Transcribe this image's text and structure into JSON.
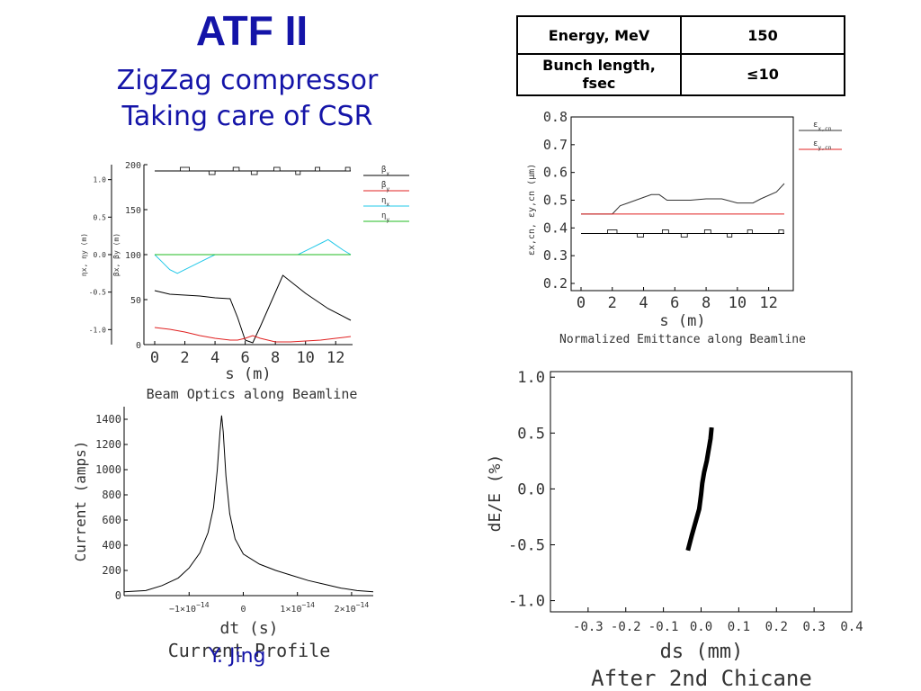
{
  "header": {
    "title": "ATF II",
    "subtitle_1": "ZigZag compressor",
    "subtitle_2": "Taking care of CSR"
  },
  "params_table": {
    "rows": [
      {
        "label": "Energy, MeV",
        "value": "150"
      },
      {
        "label_line1": "Bunch length,",
        "label_line2": "fsec",
        "value": "≤10"
      }
    ]
  },
  "author": "Y. Jing",
  "colors": {
    "title": "#1414a8",
    "beta_x": "#000000",
    "beta_y": "#e02020",
    "eta_x": "#22c8e8",
    "eta_y": "#22bb22"
  },
  "chart_data": [
    {
      "id": "beam-optics",
      "type": "line",
      "title": "Beam Optics along Beamline",
      "xlabel": "s (m)",
      "ylabel_left": "ηx, ηy (m)",
      "ylabel_right": "βx, βy (m)",
      "xlim": [
        0,
        13
      ],
      "ylim_beta": [
        0,
        200
      ],
      "ylim_eta": [
        -1.2,
        1.2
      ],
      "x_ticks": [
        0,
        2,
        4,
        6,
        8,
        10,
        12
      ],
      "beta_ticks": [
        0,
        50,
        100,
        150,
        200
      ],
      "eta_ticks": [
        -1.0,
        -0.5,
        0.0,
        0.5,
        1.0
      ],
      "eta_tick_labels": [
        "-1.0",
        "-0.5",
        "0.0",
        "0.5",
        "1.0"
      ],
      "legend_position": "right",
      "legend": [
        "βx",
        "βy",
        "ηx",
        "ηy"
      ],
      "series": [
        {
          "name": "βx",
          "axis": "beta",
          "x": [
            0,
            1,
            2,
            3,
            4,
            5,
            5.5,
            6,
            6.5,
            7,
            8.5,
            10,
            11.5,
            13
          ],
          "y": [
            60,
            56,
            55,
            54,
            52,
            51,
            30,
            5,
            2,
            20,
            77,
            57,
            40,
            27
          ]
        },
        {
          "name": "βy",
          "axis": "beta",
          "x": [
            0,
            1,
            2,
            3,
            4,
            5,
            5.5,
            6,
            6.5,
            7,
            8,
            9,
            10,
            11,
            12,
            13
          ],
          "y": [
            19,
            17,
            14,
            10,
            7,
            5,
            5,
            7,
            10,
            7,
            3,
            3,
            4,
            5,
            7,
            9
          ]
        },
        {
          "name": "ηx",
          "axis": "eta",
          "x": [
            0,
            0.5,
            1,
            1.5,
            2,
            3,
            4,
            4.2,
            9.5,
            10,
            10.5,
            11,
            11.5,
            12,
            12.5,
            13
          ],
          "y": [
            0,
            -0.1,
            -0.2,
            -0.25,
            -0.2,
            -0.1,
            0,
            0,
            0,
            0.05,
            0.1,
            0.15,
            0.2,
            0.13,
            0.06,
            0
          ]
        },
        {
          "name": "ηy",
          "axis": "eta",
          "x": [
            0,
            13
          ],
          "y": [
            0,
            0
          ]
        }
      ],
      "magnets": [
        {
          "x": 2,
          "w": 0.6,
          "dir": 1
        },
        {
          "x": 3.8,
          "w": 0.4,
          "dir": -1
        },
        {
          "x": 5.4,
          "w": 0.4,
          "dir": 1
        },
        {
          "x": 6.6,
          "w": 0.4,
          "dir": -1
        },
        {
          "x": 8.1,
          "w": 0.4,
          "dir": 1
        },
        {
          "x": 9.5,
          "w": 0.3,
          "dir": -1
        },
        {
          "x": 10.8,
          "w": 0.3,
          "dir": 1
        },
        {
          "x": 12.8,
          "w": 0.3,
          "dir": 1
        }
      ]
    },
    {
      "id": "emittance",
      "type": "line",
      "title": "Normalized Emittance along Beamline",
      "xlabel": "s (m)",
      "ylabel": "εx,cn, εy,cn (μm)",
      "xlim": [
        0,
        13
      ],
      "ylim": [
        0.2,
        0.8
      ],
      "x_ticks": [
        0,
        2,
        4,
        6,
        8,
        10,
        12
      ],
      "y_ticks": [
        0.2,
        0.3,
        0.4,
        0.5,
        0.6,
        0.7,
        0.8
      ],
      "y_tick_labels": [
        "0.2",
        "0.3",
        "0.4",
        "0.5",
        "0.6",
        "0.7",
        "0.8"
      ],
      "legend_position": "right",
      "legend": [
        "εx,cn",
        "εy,cn"
      ],
      "series": [
        {
          "name": "εx,cn",
          "x": [
            0,
            2,
            2.5,
            3,
            4,
            4.5,
            5,
            5.5,
            7,
            8,
            9,
            10,
            11,
            11.5,
            12.5,
            13
          ],
          "y": [
            0.45,
            0.45,
            0.48,
            0.49,
            0.51,
            0.52,
            0.52,
            0.5,
            0.5,
            0.505,
            0.505,
            0.49,
            0.49,
            0.505,
            0.53,
            0.56
          ]
        },
        {
          "name": "εy,cn",
          "x": [
            0,
            13
          ],
          "y": [
            0.45,
            0.45
          ]
        }
      ],
      "magnets": [
        {
          "x": 2,
          "w": 0.6,
          "dir": 1
        },
        {
          "x": 3.8,
          "w": 0.4,
          "dir": -1
        },
        {
          "x": 5.4,
          "w": 0.4,
          "dir": 1
        },
        {
          "x": 6.6,
          "w": 0.4,
          "dir": -1
        },
        {
          "x": 8.1,
          "w": 0.4,
          "dir": 1
        },
        {
          "x": 9.5,
          "w": 0.3,
          "dir": -1
        },
        {
          "x": 10.8,
          "w": 0.3,
          "dir": 1
        },
        {
          "x": 12.8,
          "w": 0.3,
          "dir": 1
        }
      ]
    },
    {
      "id": "current-profile",
      "type": "line",
      "title": "Current Profile",
      "xlabel": "dt (s)",
      "ylabel": "Current (amps)",
      "xlim": [
        -2.2e-14,
        2.4e-14
      ],
      "ylim": [
        0,
        1500
      ],
      "x_ticks": [
        -1e-14,
        0,
        1e-14,
        2e-14
      ],
      "x_tick_mantissas": [
        "−1×10",
        "0",
        "1×10",
        "2×10"
      ],
      "x_tick_exponents": [
        "−14",
        "",
        "−14",
        "−14"
      ],
      "y_ticks": [
        0,
        200,
        400,
        600,
        800,
        1000,
        1200,
        1400
      ],
      "series": [
        {
          "name": "current",
          "x": [
            -2.2e-14,
            -1.8e-14,
            -1.5e-14,
            -1.2e-14,
            -1e-14,
            -8e-15,
            -6.5e-15,
            -5.5e-15,
            -4.8e-15,
            -4.3e-15,
            -4e-15,
            -3.7e-15,
            -3.2e-15,
            -2.5e-15,
            -1.5e-15,
            0,
            3e-15,
            6e-15,
            9e-15,
            1.2e-14,
            1.5e-14,
            1.8e-14,
            2.1e-14,
            2.4e-14
          ],
          "y": [
            30,
            40,
            80,
            140,
            220,
            340,
            500,
            700,
            1000,
            1300,
            1430,
            1300,
            950,
            650,
            450,
            330,
            250,
            200,
            160,
            120,
            90,
            60,
            40,
            30
          ]
        }
      ]
    },
    {
      "id": "after-chicane",
      "type": "scatter",
      "title": "After 2nd Chicane",
      "xlabel": "ds (mm)",
      "ylabel": "dE/E (%)",
      "xlim": [
        -0.4,
        0.4
      ],
      "ylim": [
        -1.1,
        1.05
      ],
      "x_ticks": [
        -0.3,
        -0.2,
        -0.1,
        0.0,
        0.1,
        0.2,
        0.3,
        0.4
      ],
      "x_tick_labels": [
        "-0.3",
        "-0.2",
        "-0.1",
        "0.0",
        "0.1",
        "0.2",
        "0.3",
        "0.4"
      ],
      "y_ticks": [
        -1.0,
        -0.5,
        0.0,
        0.5,
        1.0
      ],
      "y_tick_labels": [
        "-1.0",
        "-0.5",
        "0.0",
        "0.5",
        "1.0"
      ],
      "series": [
        {
          "name": "bunch",
          "x": [
            -0.035,
            -0.025,
            -0.015,
            -0.005,
            0.0,
            0.003,
            0.008,
            0.015,
            0.02,
            0.025,
            0.028
          ],
          "y": [
            -0.55,
            -0.42,
            -0.3,
            -0.18,
            -0.05,
            0.05,
            0.15,
            0.25,
            0.35,
            0.45,
            0.55
          ]
        }
      ]
    }
  ]
}
